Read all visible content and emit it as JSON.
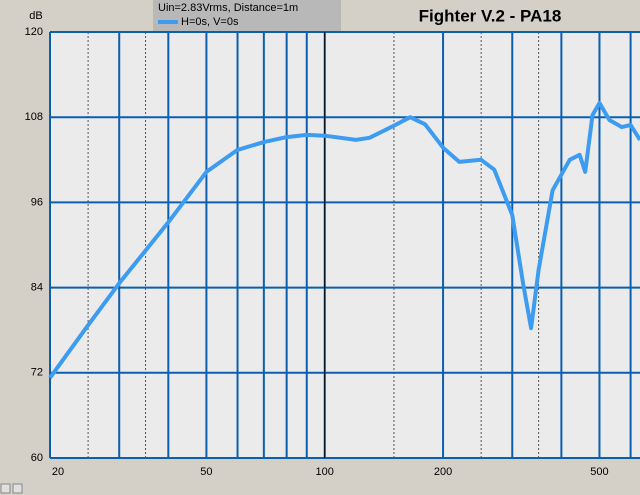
{
  "chart_data": {
    "type": "line",
    "title": "Fighter V.2 - PA18",
    "subtitle": "Uin=2.83Vrms, Distance=1m",
    "y_label": "dB",
    "x": [
      20,
      25,
      30,
      40,
      50,
      60,
      70,
      80,
      90,
      100,
      120,
      130,
      150,
      165,
      180,
      200,
      220,
      250,
      270,
      300,
      320,
      335,
      350,
      380,
      420,
      445,
      460,
      480,
      500,
      530,
      570,
      600,
      634
    ],
    "series": [
      {
        "name": "H=0s, V=0s",
        "color": "#3d9cf0",
        "values": [
          71.3,
          78.7,
          84.6,
          93.2,
          100.3,
          103.4,
          104.5,
          105.2,
          105.5,
          105.4,
          104.8,
          105.1,
          106.8,
          108,
          107,
          103.7,
          101.7,
          102,
          100.6,
          94.2,
          84.4,
          78.3,
          86.5,
          97.7,
          102,
          102.7,
          100.3,
          108.3,
          110,
          107.6,
          106.6,
          106.9,
          104.8
        ]
      }
    ],
    "xlog": true,
    "xlim": [
      20,
      634
    ],
    "xticks": [
      20,
      50,
      100,
      200,
      500
    ],
    "xgrid": [
      30,
      40,
      60,
      70,
      80,
      90,
      300,
      400,
      600
    ],
    "xgrid_dashed": [
      25,
      35,
      150,
      250,
      350
    ],
    "xgrid_bold": [
      100
    ],
    "ylim": [
      60,
      120
    ],
    "yticks": [
      60,
      72,
      84,
      96,
      108,
      120
    ],
    "grid": true
  }
}
